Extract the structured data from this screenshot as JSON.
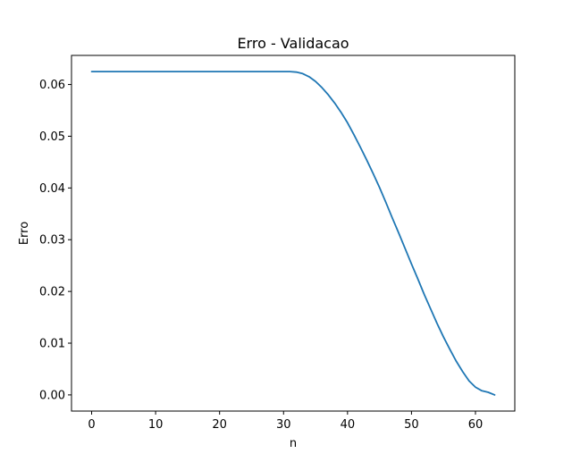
{
  "chart_data": {
    "type": "line",
    "title": "Erro - Validacao",
    "xlabel": "n",
    "ylabel": "Erro",
    "xlim": [
      -3.15,
      66.15
    ],
    "ylim": [
      -0.003125,
      0.065625
    ],
    "xticks": [
      0,
      10,
      20,
      30,
      40,
      50,
      60
    ],
    "xtick_labels": [
      "0",
      "10",
      "20",
      "30",
      "40",
      "50",
      "60"
    ],
    "yticks": [
      0.0,
      0.01,
      0.02,
      0.03,
      0.04,
      0.05,
      0.06
    ],
    "ytick_labels": [
      "0.00",
      "0.01",
      "0.02",
      "0.03",
      "0.04",
      "0.05",
      "0.06"
    ],
    "grid": false,
    "legend": "none",
    "series": [
      {
        "color": "#1f77b4",
        "x": [
          0,
          5,
          10,
          15,
          20,
          25,
          30,
          31,
          32,
          33,
          34,
          35,
          36,
          37,
          38,
          39,
          40,
          41,
          42,
          43,
          44,
          45,
          46,
          47,
          48,
          49,
          50,
          51,
          52,
          53,
          54,
          55,
          56,
          57,
          58,
          59,
          60,
          61,
          62,
          63
        ],
        "values": [
          0.0625,
          0.0625,
          0.0625,
          0.0625,
          0.0625,
          0.0625,
          0.0625,
          0.0625,
          0.0624,
          0.0621,
          0.0615,
          0.0606,
          0.0594,
          0.058,
          0.0564,
          0.0546,
          0.0526,
          0.0503,
          0.0479,
          0.0454,
          0.0428,
          0.0401,
          0.0372,
          0.0342,
          0.0313,
          0.0283,
          0.0253,
          0.0224,
          0.0194,
          0.0166,
          0.0138,
          0.0112,
          0.0088,
          0.0065,
          0.0045,
          0.0027,
          0.0015,
          0.0008,
          0.0005,
          0.0
        ]
      }
    ]
  }
}
